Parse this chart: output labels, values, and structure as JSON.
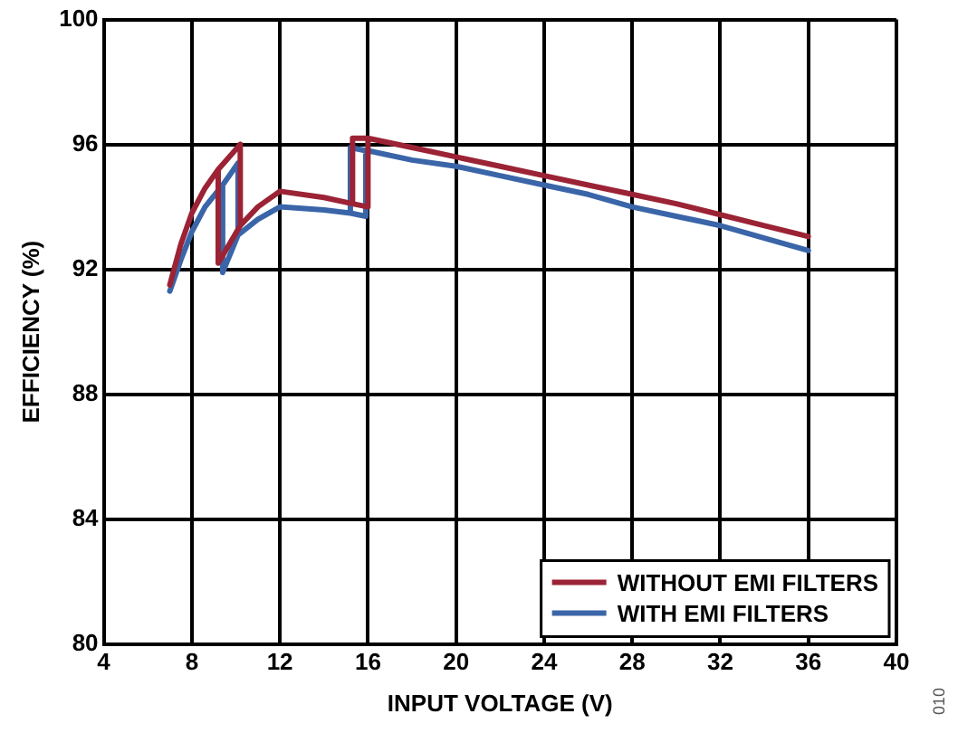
{
  "chart_data": {
    "type": "line",
    "xlabel": "INPUT VOLTAGE (V)",
    "ylabel": "EFFICIENCY (%)",
    "xlim": [
      4,
      40
    ],
    "xticks": [
      4,
      8,
      12,
      16,
      20,
      24,
      28,
      32,
      36,
      40
    ],
    "ylim": [
      80,
      100
    ],
    "yticks": [
      80,
      84,
      88,
      92,
      96,
      100
    ],
    "grid": true,
    "legend": "bottom right",
    "marker": "none",
    "line_style": "solid",
    "annotations": [
      "010"
    ],
    "series": [
      {
        "name": "WITHOUT EMI FILTERS",
        "color": "#9b2335",
        "x": [
          7,
          7.5,
          8,
          8.6,
          9.2,
          10.2,
          10.2,
          9.7,
          9.2,
          9.2,
          9.2,
          9.7,
          10.2,
          11,
          12,
          14,
          15.3,
          15.3,
          16,
          16,
          15.3,
          15.3,
          16,
          18,
          20,
          22,
          24,
          26,
          28,
          30,
          32,
          34,
          36
        ],
        "values": [
          91.5,
          92.8,
          93.8,
          94.6,
          95.2,
          96.0,
          93.4,
          92.8,
          92.2,
          95.2,
          92.2,
          92.8,
          93.4,
          94.0,
          94.5,
          94.3,
          94.1,
          96.2,
          96.2,
          94.0,
          94.1,
          96.2,
          96.2,
          95.9,
          95.6,
          95.3,
          95.0,
          94.7,
          94.4,
          94.1,
          93.75,
          93.4,
          93.05
        ]
      },
      {
        "name": "WITH EMI FILTERS",
        "color": "#3a65a8",
        "x": [
          7,
          7.5,
          8,
          8.6,
          9.4,
          10.1,
          10.1,
          9.4,
          9.4,
          9.4,
          10.1,
          11,
          12,
          14,
          15.2,
          15.2,
          15.9,
          15.9,
          15.2,
          15.2,
          15.9,
          16,
          18,
          20,
          22,
          24,
          26,
          28,
          30,
          32,
          34,
          36
        ],
        "values": [
          91.3,
          92.3,
          93.2,
          94.0,
          94.7,
          95.4,
          93.1,
          91.9,
          94.7,
          91.9,
          93.1,
          93.6,
          94.0,
          93.9,
          93.8,
          95.9,
          95.8,
          93.7,
          93.8,
          95.9,
          95.8,
          95.8,
          95.5,
          95.3,
          95.0,
          94.7,
          94.4,
          94.0,
          93.7,
          93.4,
          93.0,
          92.6
        ]
      }
    ]
  }
}
